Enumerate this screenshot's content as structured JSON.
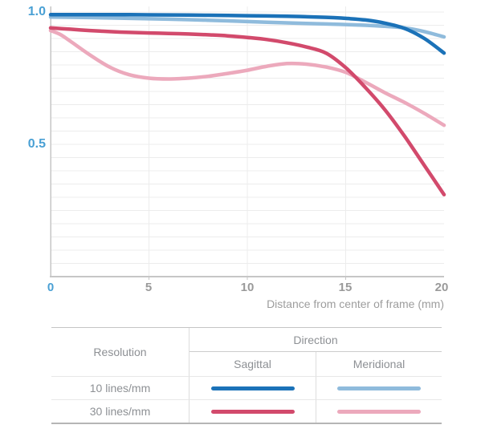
{
  "axis": {
    "y_labels": [
      "1.0",
      "0.5"
    ],
    "x_labels": [
      "0",
      "5",
      "10",
      "15",
      "20"
    ],
    "x_title": "Distance from center of frame (mm)",
    "label_blue": "#4aa0d4",
    "label_gray": "#9a9a9a"
  },
  "chart_data": {
    "type": "line",
    "title": "",
    "xlabel": "Distance from center of frame (mm)",
    "ylabel": "",
    "xlim": [
      0,
      20
    ],
    "ylim": [
      0,
      1.0
    ],
    "x_ticks": [
      0,
      5,
      10,
      15,
      20
    ],
    "y_tick_labels_shown": [
      "1.0",
      "0.5"
    ],
    "grid": {
      "horizontal_step": 0.05,
      "vertical_at": [
        5,
        10,
        15
      ],
      "color": "#ececec"
    },
    "axis_color": "#c6c6c6",
    "legend_position": "table-below",
    "series": [
      {
        "name": "10 lines/mm Meridional",
        "color": "#8fbbdc",
        "width": 4.5,
        "x": [
          0,
          2,
          4,
          6,
          8,
          10,
          12,
          14,
          16,
          17,
          18,
          19,
          20
        ],
        "y": [
          0.981,
          0.979,
          0.976,
          0.973,
          0.969,
          0.964,
          0.959,
          0.955,
          0.95,
          0.946,
          0.94,
          0.926,
          0.906
        ]
      },
      {
        "name": "30 lines/mm Meridional",
        "color": "#eca9bc",
        "width": 4.5,
        "x": [
          0,
          0.5,
          1,
          2,
          3,
          4,
          5,
          6,
          7,
          8,
          9,
          10,
          11,
          12,
          13,
          14,
          15,
          16,
          17,
          18,
          19,
          20
        ],
        "y": [
          0.93,
          0.915,
          0.89,
          0.838,
          0.792,
          0.763,
          0.75,
          0.747,
          0.75,
          0.757,
          0.768,
          0.78,
          0.795,
          0.805,
          0.803,
          0.792,
          0.772,
          0.735,
          0.695,
          0.658,
          0.617,
          0.572
        ]
      },
      {
        "name": "30 lines/mm Sagittal",
        "color": "#d24a6c",
        "width": 4.5,
        "x": [
          0,
          1,
          2,
          3,
          4,
          5,
          6,
          7,
          8,
          9,
          10,
          11,
          12,
          13,
          14,
          15,
          16,
          17,
          18,
          19,
          20
        ],
        "y": [
          0.94,
          0.935,
          0.93,
          0.926,
          0.923,
          0.921,
          0.919,
          0.917,
          0.914,
          0.91,
          0.904,
          0.896,
          0.884,
          0.868,
          0.845,
          0.79,
          0.715,
          0.63,
          0.53,
          0.42,
          0.31
        ]
      },
      {
        "name": "10 lines/mm Sagittal",
        "color": "#1b72b8",
        "width": 4.5,
        "x": [
          0,
          2,
          4,
          6,
          8,
          10,
          12,
          14,
          15,
          16,
          17,
          18,
          19,
          20
        ],
        "y": [
          0.99,
          0.99,
          0.99,
          0.989,
          0.988,
          0.986,
          0.984,
          0.98,
          0.976,
          0.97,
          0.958,
          0.938,
          0.9,
          0.845
        ]
      }
    ]
  },
  "legend": {
    "resolution_header": "Resolution",
    "direction_header": "Direction",
    "sagittal_header": "Sagittal",
    "meridional_header": "Meridional",
    "rows": [
      {
        "label": "10 lines/mm",
        "sagittal_color": "#1b72b8",
        "meridional_color": "#8fbbdc"
      },
      {
        "label": "30 lines/mm",
        "sagittal_color": "#d24a6c",
        "meridional_color": "#eca9bc"
      }
    ]
  }
}
